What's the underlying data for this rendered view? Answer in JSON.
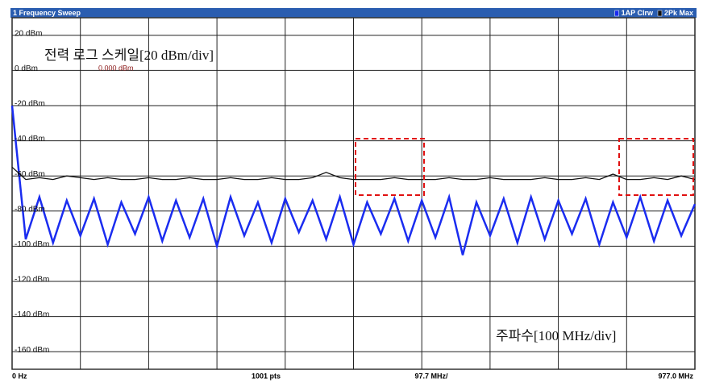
{
  "chart_data": {
    "type": "line",
    "title": "1 Frequency Sweep",
    "annotations": [
      "전력 로그 스케일[20 dBm/div]",
      "주파수[100 MHz/div]"
    ],
    "reference_label": "0.000 dBm",
    "footer_labels": [
      "0 Hz",
      "1001 pts",
      "97.7 MHz/",
      "977.0 MHz"
    ],
    "xlim": [
      0,
      977
    ],
    "xticks": [
      0,
      97.7,
      195.4,
      293.1,
      390.8,
      488.5,
      586.2,
      683.9,
      781.6,
      879.3,
      977
    ],
    "ylim": [
      -170,
      30
    ],
    "yticks": [
      {
        "value": 20,
        "label": "20 dBm"
      },
      {
        "value": 0,
        "label": "0 dBm"
      },
      {
        "value": -20,
        "label": "-20 dBm"
      },
      {
        "value": -40,
        "label": "-40 dBm"
      },
      {
        "value": -60,
        "label": "-60 dBm"
      },
      {
        "value": -80,
        "label": "-80 dBm"
      },
      {
        "value": -100,
        "label": "-100 dBm"
      },
      {
        "value": -120,
        "label": "-120 dBm"
      },
      {
        "value": -140,
        "label": "-140 dBm"
      },
      {
        "value": -160,
        "label": "-160 dBm"
      }
    ],
    "grid": true,
    "legend": "top-right",
    "x": [
      0,
      19.54,
      39.08,
      58.62,
      78.16,
      97.7,
      117.24,
      136.78,
      156.32,
      175.86,
      195.4,
      214.94,
      234.48,
      254.02,
      273.56,
      293.1,
      312.64,
      332.18,
      351.72,
      371.26,
      390.8,
      410.34,
      429.88,
      449.42,
      468.96,
      488.5,
      508.04,
      527.58,
      547.12,
      566.66,
      586.2,
      605.74,
      625.28,
      644.82,
      664.36,
      683.9,
      703.44,
      722.98,
      742.52,
      762.06,
      781.6,
      801.14,
      820.68,
      840.22,
      859.76,
      879.3,
      898.84,
      918.38,
      937.92,
      957.46,
      977
    ],
    "series": [
      {
        "name": "1AP Clrw",
        "color": "#1a2cf0",
        "values": [
          -20,
          -96,
          -72,
          -98,
          -74,
          -94,
          -73,
          -99,
          -75,
          -93,
          -72,
          -97,
          -74,
          -95,
          -73,
          -100,
          -72,
          -94,
          -75,
          -98,
          -73,
          -92,
          -74,
          -96,
          -72,
          -99,
          -75,
          -93,
          -73,
          -97,
          -74,
          -95,
          -72,
          -105,
          -75,
          -94,
          -73,
          -98,
          -72,
          -96,
          -74,
          -93,
          -73,
          -99,
          -75,
          -95,
          -72,
          -97,
          -74,
          -94,
          -76
        ]
      },
      {
        "name": "2Pk Max",
        "color": "#111111",
        "values": [
          -55,
          -62,
          -61,
          -62,
          -60,
          -61,
          -62,
          -61,
          -62,
          -62,
          -61,
          -62,
          -62,
          -61,
          -62,
          -62,
          -61,
          -62,
          -62,
          -61,
          -62,
          -62,
          -61,
          -58,
          -61,
          -62,
          -62,
          -62,
          -61,
          -62,
          -62,
          -62,
          -61,
          -62,
          -62,
          -61,
          -62,
          -62,
          -62,
          -61,
          -62,
          -62,
          -61,
          -62,
          -59,
          -62,
          -62,
          -61,
          -62,
          -60,
          -62
        ]
      }
    ]
  }
}
